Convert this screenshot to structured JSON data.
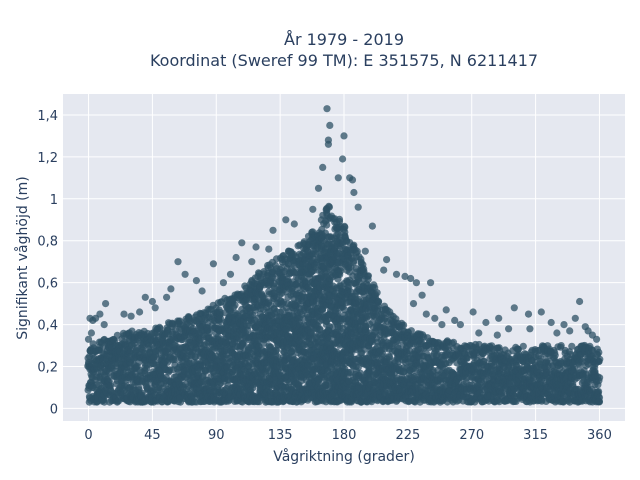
{
  "chart_data": {
    "type": "scatter",
    "title_line1": "År 1979 - 2019",
    "title_line2": "Koordinat (Sweref 99 TM): E 351575, N 6211417",
    "xlabel": "Vågriktning (grader)",
    "ylabel": "Signifikant våghöjd (m)",
    "xlim": [
      -18,
      378
    ],
    "ylim": [
      -0.06,
      1.5
    ],
    "x_ticks": [
      0,
      45,
      90,
      135,
      180,
      225,
      270,
      315,
      360
    ],
    "x_tick_labels": [
      "0",
      "45",
      "90",
      "135",
      "180",
      "225",
      "270",
      "315",
      "360"
    ],
    "y_ticks": [
      0,
      0.2,
      0.4,
      0.6,
      0.8,
      1.0,
      1.2,
      1.4
    ],
    "y_tick_labels": [
      "0",
      "0,2",
      "0,4",
      "0,6",
      "0,8",
      "1",
      "1,2",
      "1,4"
    ],
    "grid": true,
    "marker_color": "#2e5166",
    "plot_background": "#e5e8f0",
    "envelope": {
      "x": [
        0,
        15,
        30,
        45,
        60,
        75,
        90,
        105,
        120,
        135,
        150,
        160,
        170,
        180,
        190,
        200,
        210,
        225,
        240,
        255,
        270,
        285,
        300,
        315,
        330,
        345,
        360
      ],
      "y_upper": [
        0.3,
        0.34,
        0.37,
        0.38,
        0.42,
        0.45,
        0.5,
        0.56,
        0.65,
        0.73,
        0.79,
        0.87,
        0.98,
        0.87,
        0.74,
        0.6,
        0.48,
        0.38,
        0.34,
        0.32,
        0.31,
        0.3,
        0.3,
        0.3,
        0.3,
        0.3,
        0.3
      ],
      "y_lower": 0.03
    },
    "outliers": [
      {
        "x": 168,
        "y": 1.43
      },
      {
        "x": 170,
        "y": 1.35
      },
      {
        "x": 169,
        "y": 1.28
      },
      {
        "x": 169,
        "y": 1.26
      },
      {
        "x": 180,
        "y": 1.3
      },
      {
        "x": 179,
        "y": 1.19
      },
      {
        "x": 165,
        "y": 1.15
      },
      {
        "x": 184,
        "y": 1.1
      },
      {
        "x": 186,
        "y": 1.09
      },
      {
        "x": 176,
        "y": 1.1
      },
      {
        "x": 187,
        "y": 1.03
      },
      {
        "x": 162,
        "y": 1.05
      },
      {
        "x": 158,
        "y": 0.95
      },
      {
        "x": 190,
        "y": 0.96
      },
      {
        "x": 200,
        "y": 0.87
      },
      {
        "x": 195,
        "y": 0.75
      },
      {
        "x": 139,
        "y": 0.9
      },
      {
        "x": 130,
        "y": 0.85
      },
      {
        "x": 145,
        "y": 0.88
      },
      {
        "x": 108,
        "y": 0.79
      },
      {
        "x": 118,
        "y": 0.77
      },
      {
        "x": 127,
        "y": 0.76
      },
      {
        "x": 104,
        "y": 0.72
      },
      {
        "x": 115,
        "y": 0.7
      },
      {
        "x": 88,
        "y": 0.69
      },
      {
        "x": 63,
        "y": 0.7
      },
      {
        "x": 68,
        "y": 0.64
      },
      {
        "x": 76,
        "y": 0.61
      },
      {
        "x": 80,
        "y": 0.56
      },
      {
        "x": 95,
        "y": 0.6
      },
      {
        "x": 100,
        "y": 0.64
      },
      {
        "x": 58,
        "y": 0.57
      },
      {
        "x": 55,
        "y": 0.53
      },
      {
        "x": 45,
        "y": 0.51
      },
      {
        "x": 40,
        "y": 0.53
      },
      {
        "x": 47,
        "y": 0.48
      },
      {
        "x": 36,
        "y": 0.46
      },
      {
        "x": 30,
        "y": 0.44
      },
      {
        "x": 25,
        "y": 0.45
      },
      {
        "x": 12,
        "y": 0.5
      },
      {
        "x": 8,
        "y": 0.45
      },
      {
        "x": 5,
        "y": 0.43
      },
      {
        "x": 1,
        "y": 0.43
      },
      {
        "x": 3,
        "y": 0.42
      },
      {
        "x": 11,
        "y": 0.4
      },
      {
        "x": 0,
        "y": 0.33
      },
      {
        "x": 2,
        "y": 0.36
      },
      {
        "x": 208,
        "y": 0.66
      },
      {
        "x": 210,
        "y": 0.71
      },
      {
        "x": 217,
        "y": 0.64
      },
      {
        "x": 223,
        "y": 0.63
      },
      {
        "x": 227,
        "y": 0.62
      },
      {
        "x": 231,
        "y": 0.6
      },
      {
        "x": 241,
        "y": 0.6
      },
      {
        "x": 235,
        "y": 0.54
      },
      {
        "x": 229,
        "y": 0.5
      },
      {
        "x": 238,
        "y": 0.45
      },
      {
        "x": 244,
        "y": 0.43
      },
      {
        "x": 252,
        "y": 0.47
      },
      {
        "x": 258,
        "y": 0.42
      },
      {
        "x": 249,
        "y": 0.4
      },
      {
        "x": 262,
        "y": 0.4
      },
      {
        "x": 271,
        "y": 0.46
      },
      {
        "x": 280,
        "y": 0.41
      },
      {
        "x": 289,
        "y": 0.43
      },
      {
        "x": 300,
        "y": 0.48
      },
      {
        "x": 310,
        "y": 0.45
      },
      {
        "x": 319,
        "y": 0.46
      },
      {
        "x": 296,
        "y": 0.38
      },
      {
        "x": 311,
        "y": 0.38
      },
      {
        "x": 326,
        "y": 0.41
      },
      {
        "x": 335,
        "y": 0.4
      },
      {
        "x": 339,
        "y": 0.37
      },
      {
        "x": 343,
        "y": 0.43
      },
      {
        "x": 346,
        "y": 0.51
      },
      {
        "x": 350,
        "y": 0.39
      },
      {
        "x": 352,
        "y": 0.37
      },
      {
        "x": 355,
        "y": 0.35
      },
      {
        "x": 358,
        "y": 0.33
      },
      {
        "x": 288,
        "y": 0.35
      },
      {
        "x": 275,
        "y": 0.36
      },
      {
        "x": 330,
        "y": 0.36
      }
    ]
  }
}
